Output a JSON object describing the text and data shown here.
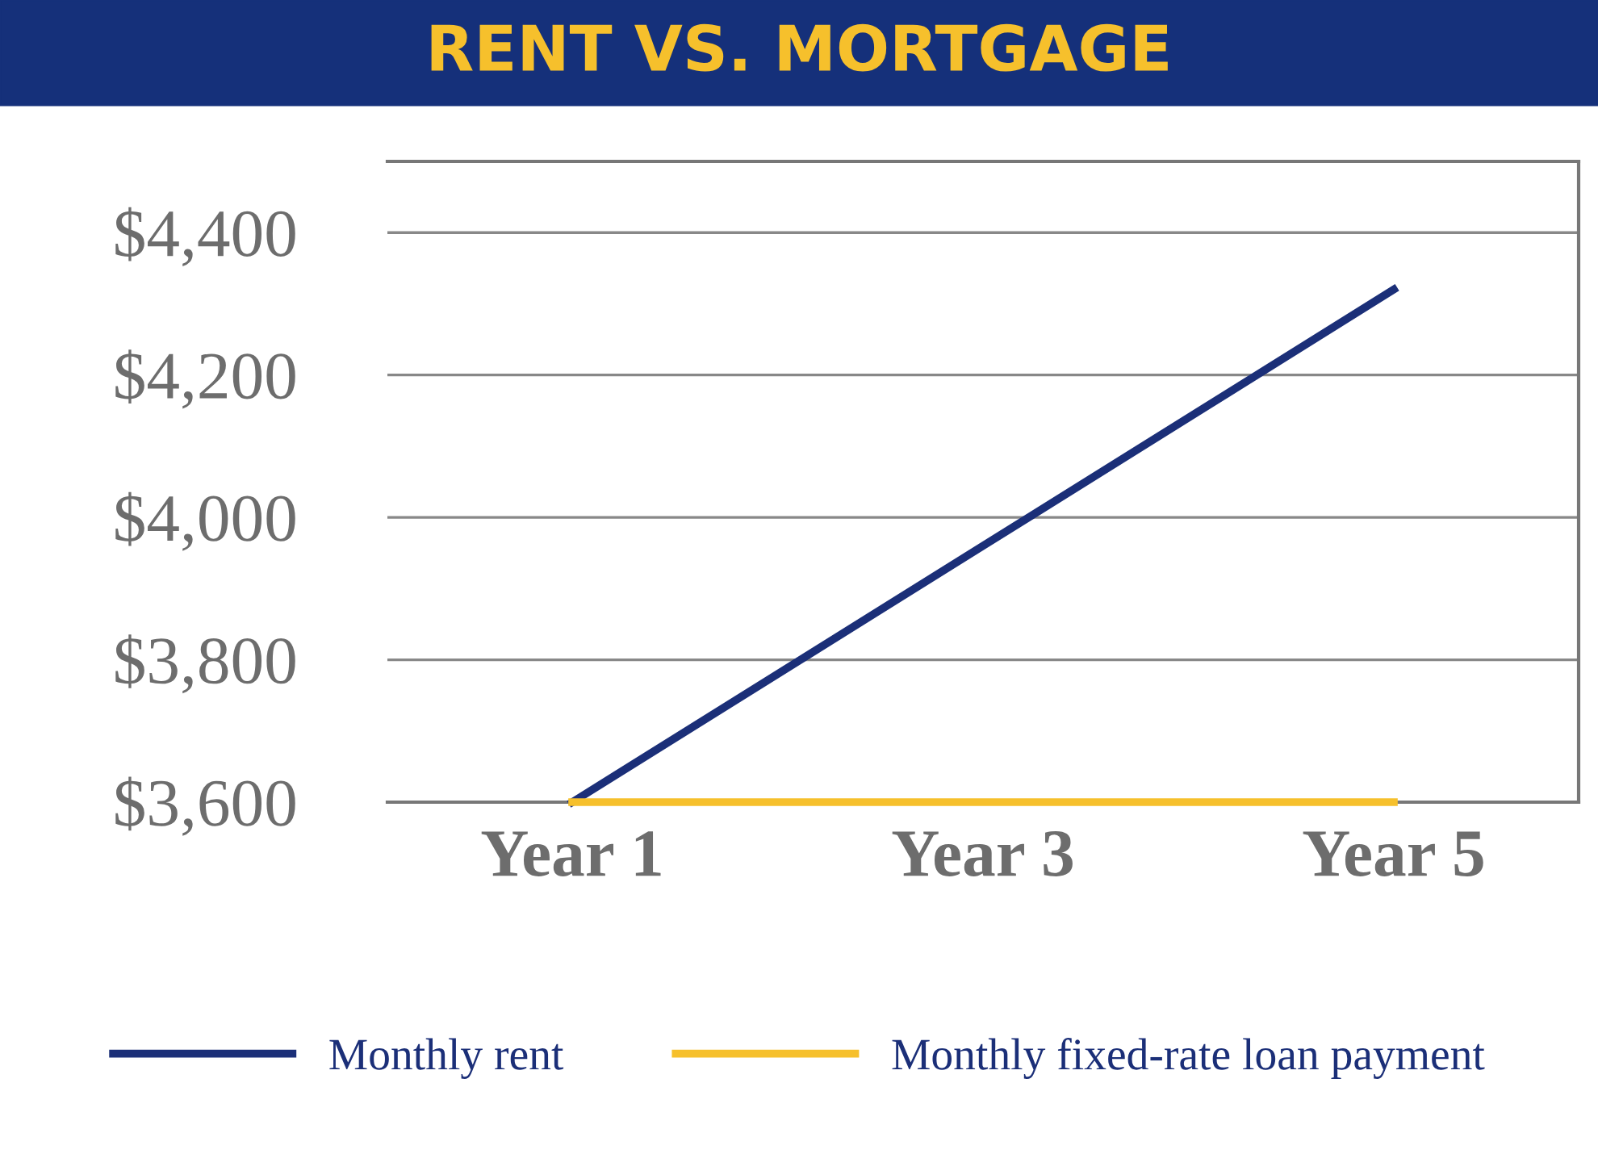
{
  "chart_data": {
    "type": "line",
    "title": "RENT VS. MORTGAGE",
    "categories": [
      "Year 1",
      "Year 3",
      "Year 5"
    ],
    "ylim": [
      3600,
      4500
    ],
    "yticks": [
      {
        "value": 3600,
        "label": "$3,600"
      },
      {
        "value": 3800,
        "label": "$3,800"
      },
      {
        "value": 4000,
        "label": "$4,000"
      },
      {
        "value": 4200,
        "label": "$4,200"
      },
      {
        "value": 4400,
        "label": "$4,400"
      }
    ],
    "series": [
      {
        "name": "Monthly rent",
        "color": "#1b2f78",
        "values": [
          3600,
          3960,
          4320
        ]
      },
      {
        "name": "Monthly fixed-rate loan payment",
        "color": "#f6c02c",
        "values": [
          3600,
          3600,
          3600
        ]
      }
    ],
    "grid": "y",
    "legend": "bottom",
    "marker": "none",
    "line_style": "solid"
  }
}
